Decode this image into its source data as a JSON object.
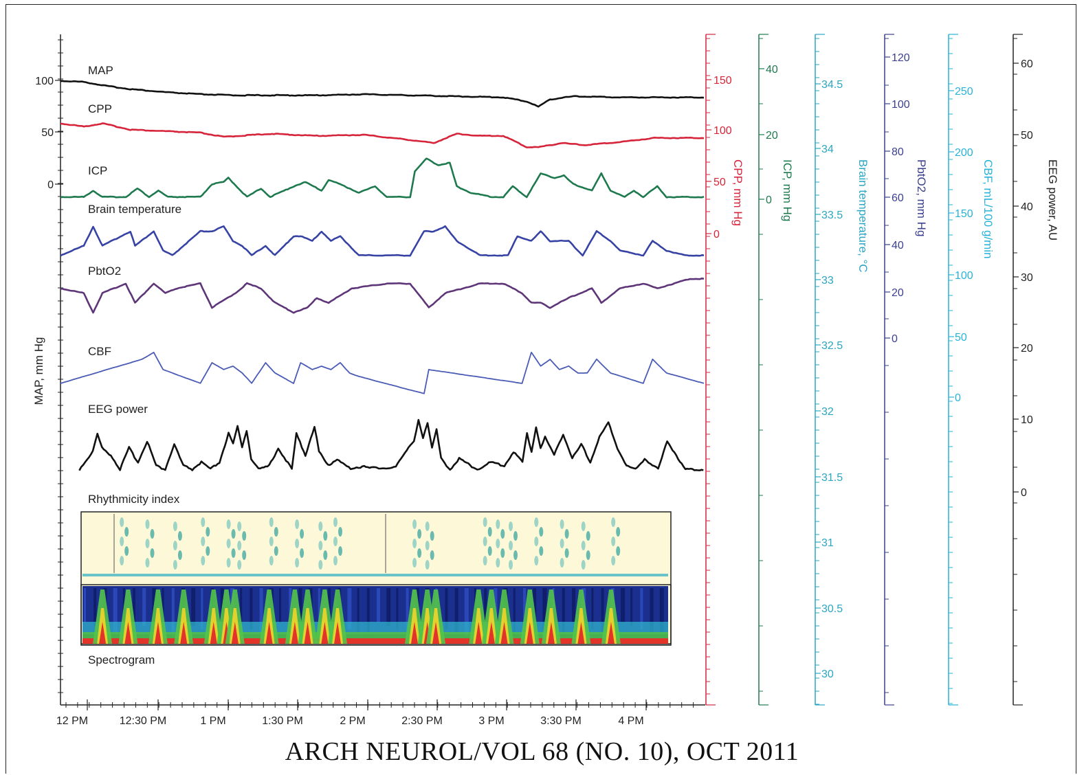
{
  "chart_data": {
    "type": "line",
    "x": {
      "unit": "time",
      "ticks": [
        "12 PM",
        "12:30 PM",
        "1 PM",
        "1:30 PM",
        "2 PM",
        "2:30 PM",
        "3 PM",
        "3:30 PM",
        "4 PM"
      ],
      "range_minutes_after_noon": [
        0,
        276
      ]
    },
    "left_axis": {
      "label": "MAP, mm Hg",
      "ticks": [
        "100",
        "50",
        "0"
      ]
    },
    "right_axes": [
      {
        "id": "cpp",
        "label": "CPP, mm Hg",
        "color": "#d6243a",
        "ticks": [
          "150",
          "100",
          "50",
          "0"
        ]
      },
      {
        "id": "icp",
        "label": "ICP, mm Hg",
        "color": "#1e7a4e",
        "ticks": [
          "40",
          "20",
          "0"
        ]
      },
      {
        "id": "temp",
        "label": "Brain temperature, °C",
        "color": "#2aa6c2",
        "ticks": [
          "34.5",
          "34",
          "33.5",
          "33",
          "32.5",
          "32",
          "31.5",
          "31",
          "30.5",
          "30"
        ]
      },
      {
        "id": "pbto2",
        "label": "PbtO2, mm Hg",
        "color": "#3a3f8e",
        "ticks": [
          "120",
          "100",
          "80",
          "60",
          "40",
          "20",
          "0"
        ]
      },
      {
        "id": "cbf",
        "label": "CBF, mL/100 g/min",
        "color": "#27b3d9",
        "ticks": [
          "250",
          "200",
          "150",
          "100",
          "50",
          "0"
        ]
      },
      {
        "id": "eeg",
        "label": "EEG power, AU",
        "color": "#222222",
        "ticks": [
          "60",
          "50",
          "40",
          "30",
          "20",
          "10",
          "0"
        ]
      }
    ],
    "series": [
      {
        "name": "MAP",
        "color": "#111111",
        "x": [
          0,
          10,
          20,
          30,
          45,
          60,
          75,
          90,
          110,
          130,
          150,
          170,
          190,
          200,
          205,
          210,
          220,
          240,
          260,
          276
        ],
        "y": [
          100,
          99,
          95,
          92,
          89,
          87,
          86,
          86,
          86,
          87,
          86,
          85,
          84,
          80,
          75,
          82,
          85,
          84,
          84,
          84
        ]
      },
      {
        "name": "CPP",
        "color": "#d6243a",
        "x": [
          0,
          10,
          18,
          30,
          40,
          60,
          70,
          90,
          110,
          130,
          150,
          160,
          170,
          180,
          190,
          200,
          205,
          215,
          225,
          240,
          255,
          276
        ],
        "y": [
          56,
          53,
          56,
          50,
          49,
          47,
          43,
          46,
          44,
          45,
          40,
          37,
          46,
          44,
          44,
          33,
          33,
          37,
          35,
          38,
          42,
          42
        ]
      },
      {
        "name": "ICP",
        "color": "#1e7a4e",
        "x": [
          0,
          10,
          14,
          18,
          28,
          33,
          38,
          42,
          46,
          60,
          65,
          70,
          72,
          80,
          86,
          90,
          100,
          105,
          112,
          115,
          120,
          128,
          135,
          140,
          150,
          152,
          157,
          162,
          167,
          170,
          176,
          185,
          190,
          194,
          200,
          206,
          212,
          216,
          220,
          228,
          232,
          236,
          242,
          246,
          250,
          256,
          260,
          266,
          276
        ],
        "y": [
          0,
          0,
          3,
          0,
          0,
          4,
          0,
          3,
          0,
          0,
          6,
          7,
          9,
          0,
          4,
          0,
          5,
          7,
          3,
          8,
          6,
          2,
          5,
          0,
          0,
          12,
          18,
          15,
          16,
          5,
          2,
          0,
          0,
          5,
          0,
          11,
          9,
          10,
          6,
          3,
          11,
          3,
          0,
          3,
          0,
          5,
          0,
          0,
          0
        ]
      },
      {
        "name": "Brain temperature",
        "color": "#3743a4",
        "x": [
          0,
          10,
          14,
          18,
          30,
          32,
          40,
          44,
          48,
          60,
          65,
          70,
          74,
          78,
          82,
          88,
          92,
          100,
          103,
          108,
          112,
          116,
          120,
          124,
          128,
          140,
          150,
          156,
          160,
          165,
          170,
          180,
          192,
          196,
          202,
          206,
          210,
          218,
          224,
          230,
          236,
          240,
          250,
          254,
          260,
          268,
          276
        ],
        "y": [
          0,
          2,
          6,
          2,
          5,
          2,
          5,
          1,
          0,
          5,
          5,
          6,
          3,
          2,
          0,
          2,
          0,
          4,
          4,
          3,
          5,
          3,
          4,
          2,
          0,
          0,
          0,
          5,
          5,
          6,
          3,
          0,
          0,
          4,
          3,
          5,
          3,
          3,
          0,
          5,
          3,
          1,
          0,
          3,
          1,
          0,
          0
        ]
      },
      {
        "name": "PbtO2",
        "color": "#5e3578",
        "x": [
          0,
          10,
          14,
          18,
          28,
          32,
          40,
          45,
          50,
          60,
          65,
          75,
          80,
          86,
          92,
          100,
          106,
          110,
          115,
          125,
          140,
          150,
          158,
          165,
          180,
          190,
          198,
          202,
          206,
          210,
          218,
          228,
          232,
          240,
          250,
          256,
          270,
          276
        ],
        "y": [
          6,
          5,
          1,
          5,
          7,
          3,
          7,
          5,
          6,
          7,
          2,
          5,
          7,
          6,
          3,
          1,
          2,
          4,
          3,
          6,
          7,
          7,
          2,
          5,
          7,
          7,
          5,
          3,
          3,
          2,
          4,
          6,
          3,
          6,
          7,
          6,
          8,
          8
        ]
      },
      {
        "name": "CBF",
        "color": "#4a5bb6",
        "x": [
          0,
          35,
          40,
          44,
          48,
          60,
          65,
          70,
          74,
          78,
          82,
          88,
          92,
          100,
          103,
          108,
          112,
          116,
          120,
          124,
          128,
          156,
          158,
          198,
          202,
          206,
          210,
          214,
          218,
          222,
          226,
          230,
          236,
          250,
          254,
          260,
          276
        ],
        "y": [
          0,
          7,
          9,
          4,
          3,
          0,
          6,
          4,
          5,
          3,
          0,
          6,
          3,
          0,
          6,
          4,
          5,
          4,
          6,
          3,
          2,
          -3,
          4,
          0,
          9,
          5,
          7,
          4,
          5,
          3,
          3,
          7,
          3,
          0,
          7,
          3,
          0
        ]
      },
      {
        "name": "EEG power",
        "color": "#111111",
        "x": [
          0,
          6,
          8,
          10,
          14,
          18,
          22,
          26,
          30,
          34,
          38,
          42,
          46,
          50,
          54,
          58,
          62,
          66,
          68,
          70,
          72,
          74,
          76,
          80,
          84,
          88,
          94,
          96,
          100,
          104,
          106,
          110,
          114,
          120,
          126,
          134,
          140,
          148,
          150,
          152,
          154,
          156,
          158,
          160,
          164,
          168,
          176,
          182,
          188,
          192,
          196,
          198,
          200,
          202,
          204,
          206,
          210,
          214,
          218,
          222,
          226,
          230,
          234,
          238,
          242,
          246,
          250,
          256,
          260,
          268,
          276
        ],
        "y": [
          0,
          5,
          10,
          6,
          4,
          0,
          6,
          2,
          8,
          1,
          0,
          7,
          1,
          0,
          2,
          0,
          2,
          10,
          7,
          12,
          6,
          11,
          3,
          0,
          1,
          6,
          0,
          10,
          4,
          12,
          5,
          1,
          3,
          0,
          1,
          0,
          1,
          8,
          14,
          9,
          13,
          6,
          11,
          3,
          0,
          3,
          0,
          2,
          1,
          5,
          2,
          10,
          5,
          12,
          6,
          9,
          4,
          10,
          3,
          7,
          2,
          9,
          13,
          6,
          1,
          0,
          3,
          0,
          8,
          0,
          0
        ]
      }
    ],
    "panels": [
      {
        "name": "Rhythmicity index",
        "burst_minutes": [
          20,
          32,
          45,
          58,
          70,
          75,
          90,
          102,
          113,
          120,
          157,
          163,
          190,
          196,
          202,
          214,
          226,
          236,
          250
        ]
      },
      {
        "name": "Spectrogram",
        "burst_minutes": [
          10,
          22,
          36,
          48,
          62,
          68,
          72,
          88,
          100,
          106,
          114,
          120,
          156,
          162,
          166,
          186,
          192,
          198,
          210,
          220,
          234,
          248
        ]
      }
    ]
  },
  "footer": "ARCH NEUROL/VOL 68 (NO. 10),  OCT 2011"
}
